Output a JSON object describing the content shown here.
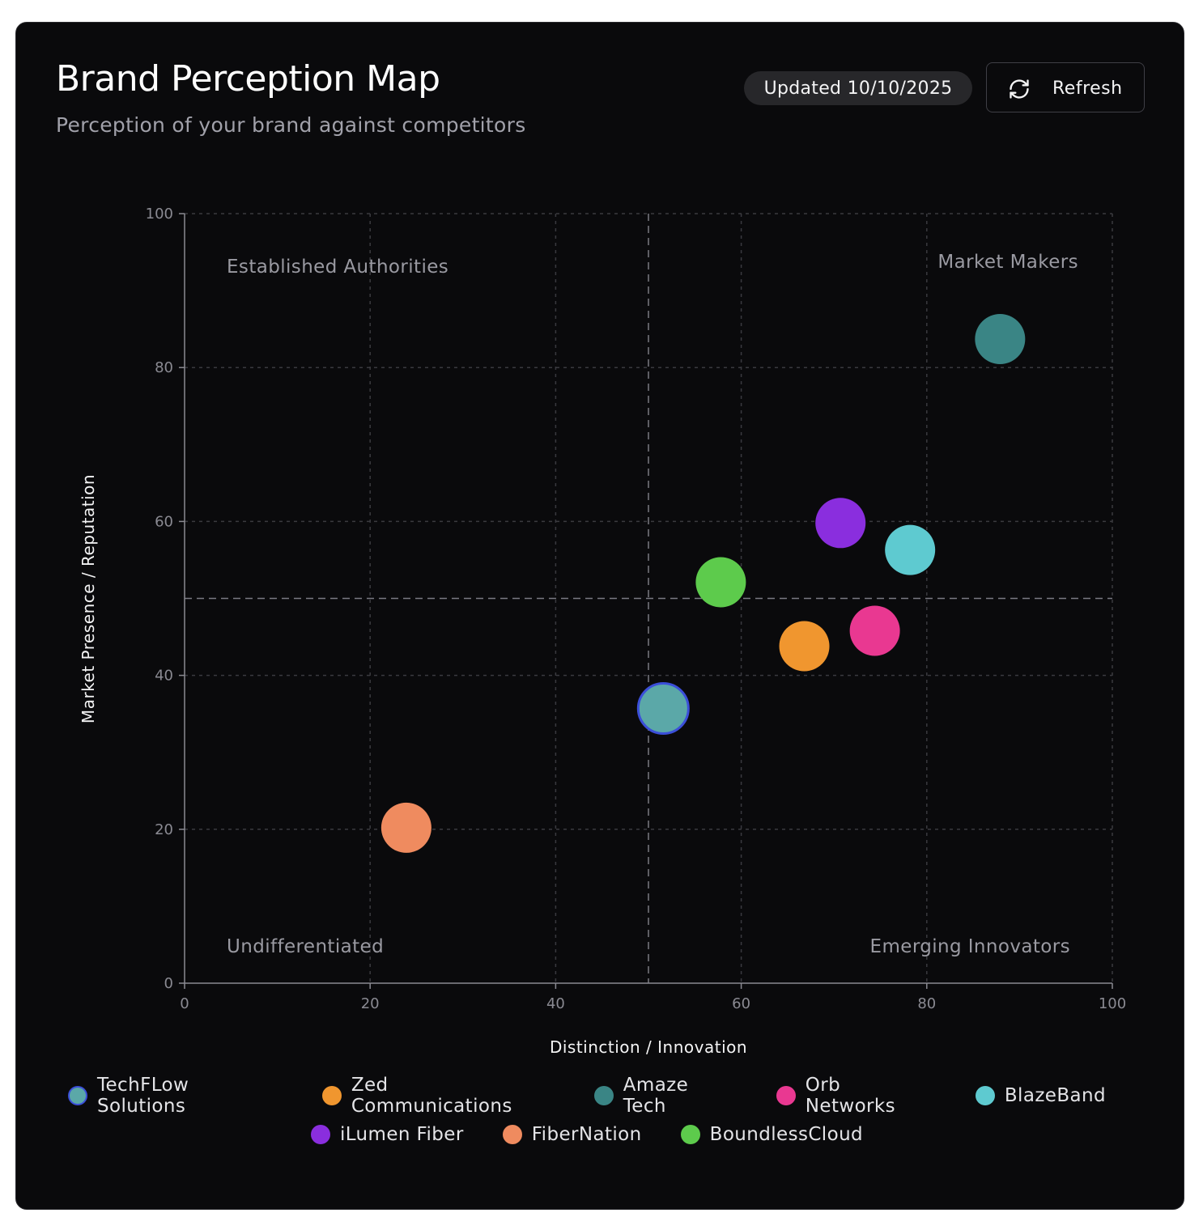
{
  "header": {
    "title": "Brand Perception Map",
    "subtitle": "Perception of your brand against competitors",
    "updated": "Updated 10/10/2025",
    "refresh_label": "Refresh",
    "refresh_icon": "refresh-icon"
  },
  "chart_data": {
    "type": "scatter",
    "xlabel": "Distinction / Innovation",
    "ylabel": "Market Presence / Reputation",
    "xlim": [
      0,
      100
    ],
    "ylim": [
      0,
      100
    ],
    "xticks": [
      0,
      20,
      40,
      60,
      80,
      100
    ],
    "yticks": [
      0,
      20,
      40,
      60,
      80,
      100
    ],
    "grid": true,
    "quadrant_divider": {
      "x": 50,
      "y": 50
    },
    "quadrants": {
      "top_left": "Established Authorities",
      "top_right": "Market Makers",
      "bottom_left": "Undifferentiated",
      "bottom_right": "Emerging Innovators"
    },
    "legend_position": "bottom",
    "series": [
      {
        "name": "TechFLow Solutions",
        "x": 51.6,
        "y": 35.7,
        "color": "#5ba8a8",
        "highlight": true,
        "outline": "#3b4fd9"
      },
      {
        "name": "Zed Communications",
        "x": 66.8,
        "y": 43.8,
        "color": "#f0962f"
      },
      {
        "name": "Amaze Tech",
        "x": 87.9,
        "y": 83.7,
        "color": "#3a8585"
      },
      {
        "name": "Orb Networks",
        "x": 74.4,
        "y": 45.8,
        "color": "#e93891"
      },
      {
        "name": "BlazeBand",
        "x": 78.2,
        "y": 56.3,
        "color": "#5ecad0"
      },
      {
        "name": "iLumen Fiber",
        "x": 70.7,
        "y": 59.8,
        "color": "#8a2ede"
      },
      {
        "name": "FiberNation",
        "x": 23.9,
        "y": 20.2,
        "color": "#ef8b5f"
      },
      {
        "name": "BoundlessCloud",
        "x": 57.8,
        "y": 52.1,
        "color": "#5dcb4c"
      }
    ]
  }
}
